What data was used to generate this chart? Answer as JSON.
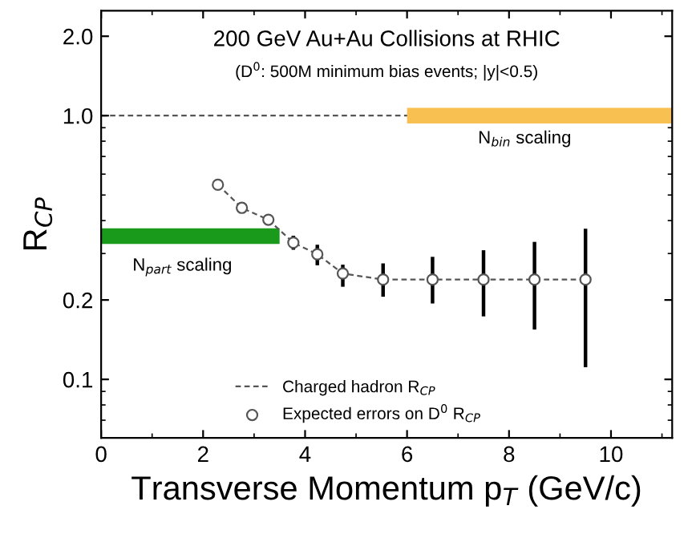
{
  "chart_data": {
    "type": "scatter",
    "title": "200 GeV Au+Au Collisions at RHIC",
    "subtitle": "(D$^{0}$: 500M minimum bias events; |y|<0.5)",
    "xlabel": "Transverse Momentum p$_{T}$ (GeV/c)",
    "ylabel": "R$_{CP}$",
    "series": [
      {
        "type": "line",
        "line_style": "solid",
        "x": [
          0,
          3.5
        ],
        "values": [
          0.349,
          0.349
        ],
        "color": "#1a9a1a"
      },
      {
        "type": "line",
        "line_style": "solid",
        "x": [
          6,
          11.2
        ],
        "values": [
          1.0,
          1.0
        ],
        "color": "#f8c050"
      },
      {
        "type": "line",
        "name": "Charged hadron R$_{CP}$",
        "color": "#555555",
        "line_style": "dashed",
        "marker": "none",
        "x": [
          2.29,
          2.76,
          3.28,
          3.77,
          4.24,
          4.74,
          5.53,
          6.5,
          7.5,
          8.5,
          9.5
        ],
        "values": [
          0.547,
          0.447,
          0.403,
          0.33,
          0.298,
          0.252,
          0.239,
          0.239,
          0.239,
          0.239,
          0.239
        ]
      },
      {
        "name": "Expected errors on D$^{0}$ R$_{CP}$",
        "color": "#555555",
        "marker": "circle",
        "x": [
          2.29,
          2.76,
          3.28,
          3.77,
          4.24,
          4.74,
          5.53,
          6.5,
          7.5,
          8.5,
          9.5
        ],
        "values": [
          0.547,
          0.447,
          0.403,
          0.33,
          0.298,
          0.252,
          0.239,
          0.239,
          0.239,
          0.239,
          0.239
        ],
        "errors": [
          null,
          null,
          null,
          [
            0.315,
            0.345
          ],
          [
            0.275,
            0.319
          ],
          [
            0.228,
            0.268
          ],
          [
            0.209,
            0.271
          ],
          [
            0.197,
            0.287
          ],
          [
            0.176,
            0.304
          ],
          [
            0.157,
            0.327
          ],
          [
            0.113,
            0.367
          ]
        ]
      }
    ],
    "ref_lines": [
      {
        "axis": "y",
        "value": 1.0,
        "color": "#555555",
        "line_style": "dashed"
      }
    ],
    "annotations": [
      "N$_{part}$ scaling",
      "N$_{bin}$ scaling"
    ],
    "log": "y",
    "xlim": [
      0,
      11.2
    ],
    "ylim": [
      0.06,
      2.5
    ],
    "xticks": [
      0,
      2,
      4,
      6,
      8,
      10
    ],
    "yticks": [
      {
        "value": 0.1,
        "label": "0.1"
      },
      {
        "value": 0.2,
        "label": "0.2"
      },
      {
        "value": 1.0,
        "label": "1.0"
      },
      {
        "value": 2.0,
        "label": "2.0"
      }
    ],
    "grid": false,
    "legend": "bottom"
  }
}
